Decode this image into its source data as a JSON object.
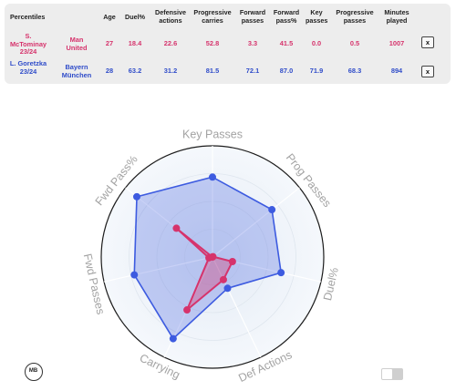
{
  "table": {
    "headers": {
      "title": "Percentiles",
      "age": "Age",
      "duel": "Duel%",
      "def_actions": "Defensive actions",
      "prog_carries": "Progressive carries",
      "fwd_passes": "Forward passes",
      "fwd_pass_pct": "Forward pass%",
      "key_passes": "Key passes",
      "prog_passes": "Progressive passes",
      "minutes": "Minutes played"
    },
    "rows": [
      {
        "player": "S. McTominay 23/24",
        "team": "Man United",
        "age": "27",
        "duel": "18.4",
        "def_actions": "22.6",
        "prog_carries": "52.8",
        "fwd_passes": "3.3",
        "fwd_pass_pct": "41.5",
        "key_passes": "0.0",
        "prog_passes": "0.5",
        "minutes": "1007",
        "remove": "x",
        "color": "#d6336c"
      },
      {
        "player": "L. Goretzka 23/24",
        "team": "Bayern München",
        "age": "28",
        "duel": "63.2",
        "def_actions": "31.2",
        "prog_carries": "81.5",
        "fwd_passes": "72.1",
        "fwd_pass_pct": "87.0",
        "key_passes": "71.9",
        "prog_passes": "68.3",
        "minutes": "894",
        "remove": "x",
        "color": "#2f4cc9"
      }
    ]
  },
  "radar": {
    "axes": [
      "Key Passes",
      "Prog Passes",
      "Duel%",
      "Def Actions",
      "Carrying",
      "Fwd Passes",
      "Fwd Pass%"
    ],
    "series": [
      {
        "name": "L. Goretzka",
        "color": "#3d5be0",
        "values": [
          71.9,
          68.3,
          63.2,
          31.2,
          81.5,
          72.1,
          87.0
        ]
      },
      {
        "name": "S. McTominay",
        "color": "#d6336c",
        "values": [
          0.0,
          0.5,
          18.4,
          22.6,
          52.8,
          3.3,
          41.5
        ]
      }
    ]
  },
  "logo": {
    "text": "MB",
    "icon": "mb-logo-icon"
  },
  "toggle": {
    "state": "off"
  }
}
